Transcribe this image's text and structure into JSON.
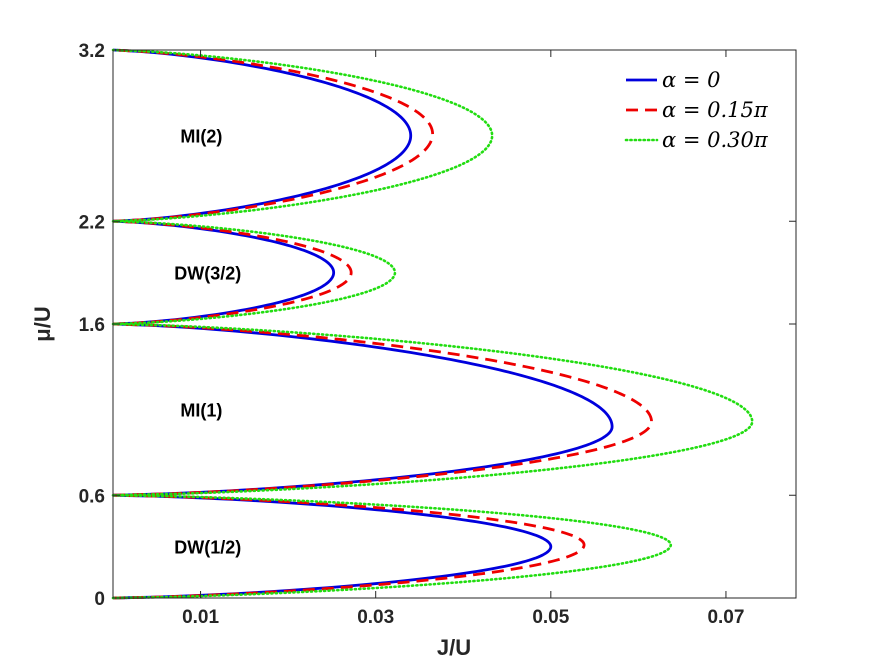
{
  "chart_data": {
    "type": "line",
    "title": "",
    "xlabel": "J/U",
    "ylabel": "μ/U",
    "xlim": [
      0,
      0.078
    ],
    "ylim": [
      0,
      3.2
    ],
    "x_ticks": [
      0.01,
      0.03,
      0.05,
      0.07
    ],
    "x_tick_labels": [
      "0.01",
      "0.03",
      "0.05",
      "0.07"
    ],
    "y_ticks": [
      0,
      0.6,
      1.6,
      2.2,
      3.2
    ],
    "y_tick_labels": [
      "0",
      "0.6",
      "1.6",
      "2.2",
      "3.2"
    ],
    "legend_position": "top-right",
    "series": [
      {
        "name": "α = 0",
        "legend_label": "α = 0",
        "color": "#0000dd",
        "style": "solid",
        "lobes": [
          {
            "mu_low": 0,
            "mu_high": 0.6,
            "tip_J": 0.05,
            "tip_mu": 0.3
          },
          {
            "mu_low": 0.6,
            "mu_high": 1.6,
            "tip_J": 0.057,
            "tip_mu": 1.0
          },
          {
            "mu_low": 1.6,
            "mu_high": 2.2,
            "tip_J": 0.0252,
            "tip_mu": 1.9
          },
          {
            "mu_low": 2.2,
            "mu_high": 3.2,
            "tip_J": 0.034,
            "tip_mu": 2.7
          }
        ]
      },
      {
        "name": "α = 0.15π",
        "legend_label": "α = 0.15π",
        "color": "#ee0000",
        "style": "dashed",
        "lobes": [
          {
            "mu_low": 0,
            "mu_high": 0.6,
            "tip_J": 0.0538,
            "tip_mu": 0.31
          },
          {
            "mu_low": 0.6,
            "mu_high": 1.6,
            "tip_J": 0.0615,
            "tip_mu": 1.03
          },
          {
            "mu_low": 1.6,
            "mu_high": 2.2,
            "tip_J": 0.0272,
            "tip_mu": 1.9
          },
          {
            "mu_low": 2.2,
            "mu_high": 3.2,
            "tip_J": 0.0365,
            "tip_mu": 2.71
          }
        ]
      },
      {
        "name": "α = 0.30π",
        "legend_label": "α = 0.30π",
        "color": "#22dd11",
        "style": "dotted",
        "lobes": [
          {
            "mu_low": 0,
            "mu_high": 0.6,
            "tip_J": 0.0637,
            "tip_mu": 0.31
          },
          {
            "mu_low": 0.6,
            "mu_high": 1.6,
            "tip_J": 0.073,
            "tip_mu": 1.03
          },
          {
            "mu_low": 1.6,
            "mu_high": 2.2,
            "tip_J": 0.0322,
            "tip_mu": 1.9
          },
          {
            "mu_low": 2.2,
            "mu_high": 3.2,
            "tip_J": 0.0433,
            "tip_mu": 2.7
          }
        ]
      }
    ],
    "annotations": [
      {
        "text": "MI(2)",
        "x": 0.0077,
        "mu": 2.7
      },
      {
        "text": "DW(3/2)",
        "x": 0.007,
        "mu": 1.9
      },
      {
        "text": "MI(1)",
        "x": 0.0077,
        "mu": 1.1
      },
      {
        "text": "DW(1/2)",
        "x": 0.007,
        "mu": 0.3
      }
    ]
  }
}
